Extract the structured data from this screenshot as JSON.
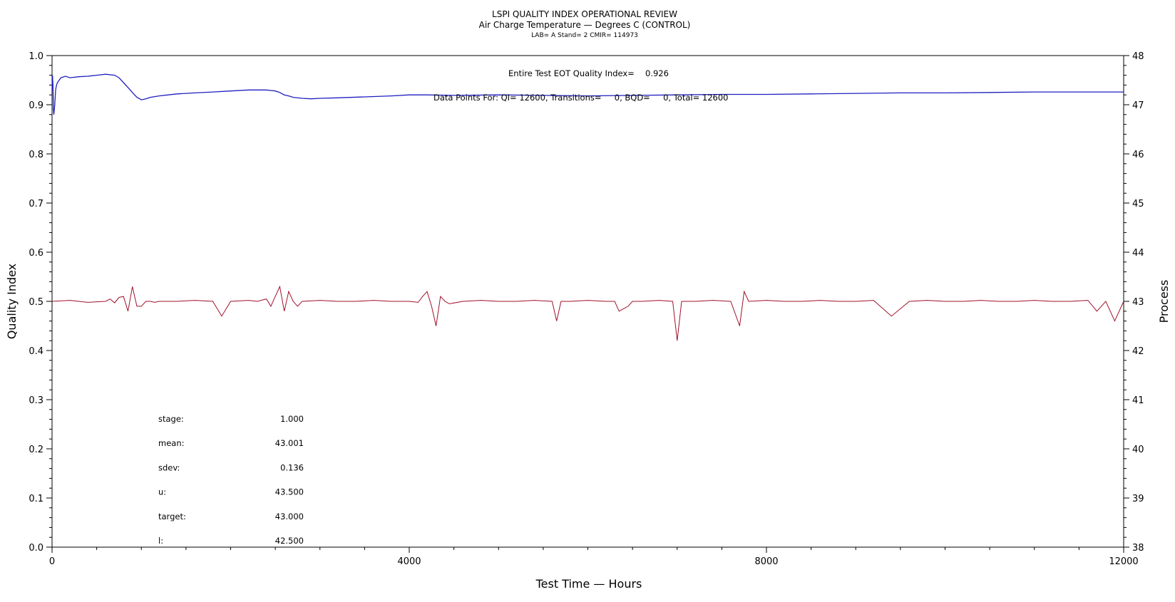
{
  "chart_data": {
    "type": "line",
    "title": "LSPI QUALITY INDEX OPERATIONAL REVIEW",
    "subtitle": "Air Charge Temperature — Degrees C (CONTROL)",
    "subtitle2": "LAB= A Stand= 2 CMIR= 114973",
    "xlabel": "Test Time — Hours",
    "ylabel": "Quality Index",
    "y2label": "Process",
    "xlim": [
      0,
      12000
    ],
    "ylim": [
      0.0,
      1.0
    ],
    "y2lim": [
      38,
      48
    ],
    "xticks": [
      0,
      4000,
      8000,
      12000
    ],
    "yticks": [
      0.0,
      0.1,
      0.2,
      0.3,
      0.4,
      0.5,
      0.6,
      0.7,
      0.8,
      0.9,
      1.0
    ],
    "y2ticks": [
      38,
      39,
      40,
      41,
      42,
      43,
      44,
      45,
      46,
      47,
      48
    ],
    "grid": false,
    "annotations": {
      "qi_label": "Entire Test EOT Quality Index=",
      "qi_value": "0.926",
      "datapoints": "Data Points For: QI= 12600, Transitions=     0, BQD=     0, Total= 12600"
    },
    "stats": [
      {
        "label": "stage:",
        "value": "1.000"
      },
      {
        "label": "mean:",
        "value": "43.001"
      },
      {
        "label": "sdev:",
        "value": "0.136"
      },
      {
        "label": "u:",
        "value": "43.500"
      },
      {
        "label": "target:",
        "value": "43.000"
      },
      {
        "label": "l:",
        "value": "42.500"
      }
    ],
    "series": [
      {
        "axis": "left",
        "color": "#1f1fbf",
        "x": [
          0,
          5,
          10,
          15,
          20,
          30,
          40,
          50,
          60,
          80,
          100,
          150,
          200,
          300,
          400,
          500,
          600,
          700,
          750,
          800,
          850,
          900,
          950,
          1000,
          1050,
          1100,
          1200,
          1300,
          1400,
          1600,
          1800,
          2000,
          2200,
          2400,
          2500,
          2550,
          2600,
          2650,
          2700,
          2800,
          2900,
          3000,
          3200,
          3500,
          3800,
          4000,
          4200,
          4500,
          5000,
          5500,
          6000,
          6500,
          7000,
          7500,
          8000,
          8500,
          9000,
          9500,
          10000,
          10500,
          11000,
          11500,
          12000
        ],
        "values": [
          0.93,
          0.96,
          0.94,
          0.89,
          0.88,
          0.9,
          0.93,
          0.94,
          0.945,
          0.95,
          0.955,
          0.958,
          0.955,
          0.957,
          0.958,
          0.96,
          0.962,
          0.96,
          0.955,
          0.945,
          0.935,
          0.925,
          0.915,
          0.91,
          0.912,
          0.915,
          0.918,
          0.92,
          0.922,
          0.924,
          0.926,
          0.928,
          0.93,
          0.93,
          0.928,
          0.925,
          0.92,
          0.918,
          0.915,
          0.913,
          0.912,
          0.913,
          0.914,
          0.916,
          0.918,
          0.92,
          0.92,
          0.919,
          0.92,
          0.919,
          0.918,
          0.919,
          0.92,
          0.921,
          0.921,
          0.922,
          0.923,
          0.924,
          0.924,
          0.925,
          0.926,
          0.926,
          0.926
        ]
      },
      {
        "axis": "right",
        "color": "#a0102a",
        "x": [
          0,
          200,
          400,
          600,
          650,
          700,
          750,
          800,
          850,
          900,
          950,
          1000,
          1050,
          1100,
          1150,
          1200,
          1400,
          1600,
          1800,
          1900,
          2000,
          2200,
          2300,
          2400,
          2450,
          2500,
          2550,
          2600,
          2650,
          2700,
          2750,
          2800,
          3000,
          3200,
          3400,
          3600,
          3800,
          4000,
          4100,
          4150,
          4200,
          4250,
          4300,
          4350,
          4400,
          4450,
          4600,
          4800,
          5000,
          5200,
          5400,
          5600,
          5650,
          5700,
          5800,
          6000,
          6200,
          6300,
          6350,
          6400,
          6450,
          6500,
          6600,
          6800,
          6950,
          7000,
          7050,
          7200,
          7400,
          7600,
          7700,
          7750,
          7800,
          8000,
          8200,
          8400,
          8600,
          8800,
          9000,
          9200,
          9400,
          9600,
          9800,
          10000,
          10200,
          10400,
          10600,
          10800,
          11000,
          11200,
          11400,
          11600,
          11700,
          11800,
          11900,
          12000
        ],
        "values": [
          43.0,
          43.02,
          42.98,
          43.0,
          43.05,
          42.97,
          43.08,
          43.1,
          42.8,
          43.3,
          42.9,
          42.9,
          43.0,
          43.0,
          42.98,
          43.0,
          43.0,
          43.02,
          43.0,
          42.7,
          43.0,
          43.02,
          43.0,
          43.05,
          42.9,
          43.1,
          43.3,
          42.8,
          43.2,
          43.0,
          42.9,
          43.0,
          43.02,
          43.0,
          43.0,
          43.02,
          43.0,
          43.0,
          42.98,
          43.1,
          43.2,
          42.9,
          42.5,
          43.1,
          43.0,
          42.95,
          43.0,
          43.02,
          43.0,
          43.0,
          43.02,
          43.0,
          42.6,
          43.0,
          43.0,
          43.02,
          43.0,
          43.0,
          42.8,
          42.85,
          42.9,
          43.0,
          43.0,
          43.02,
          43.0,
          42.2,
          43.0,
          43.0,
          43.02,
          43.0,
          42.5,
          43.2,
          43.0,
          43.02,
          43.0,
          43.0,
          43.02,
          43.0,
          43.0,
          43.02,
          42.7,
          43.0,
          43.02,
          43.0,
          43.0,
          43.02,
          43.0,
          43.0,
          43.02,
          43.0,
          43.0,
          43.02,
          42.8,
          43.0,
          42.6,
          43.0
        ]
      }
    ]
  }
}
